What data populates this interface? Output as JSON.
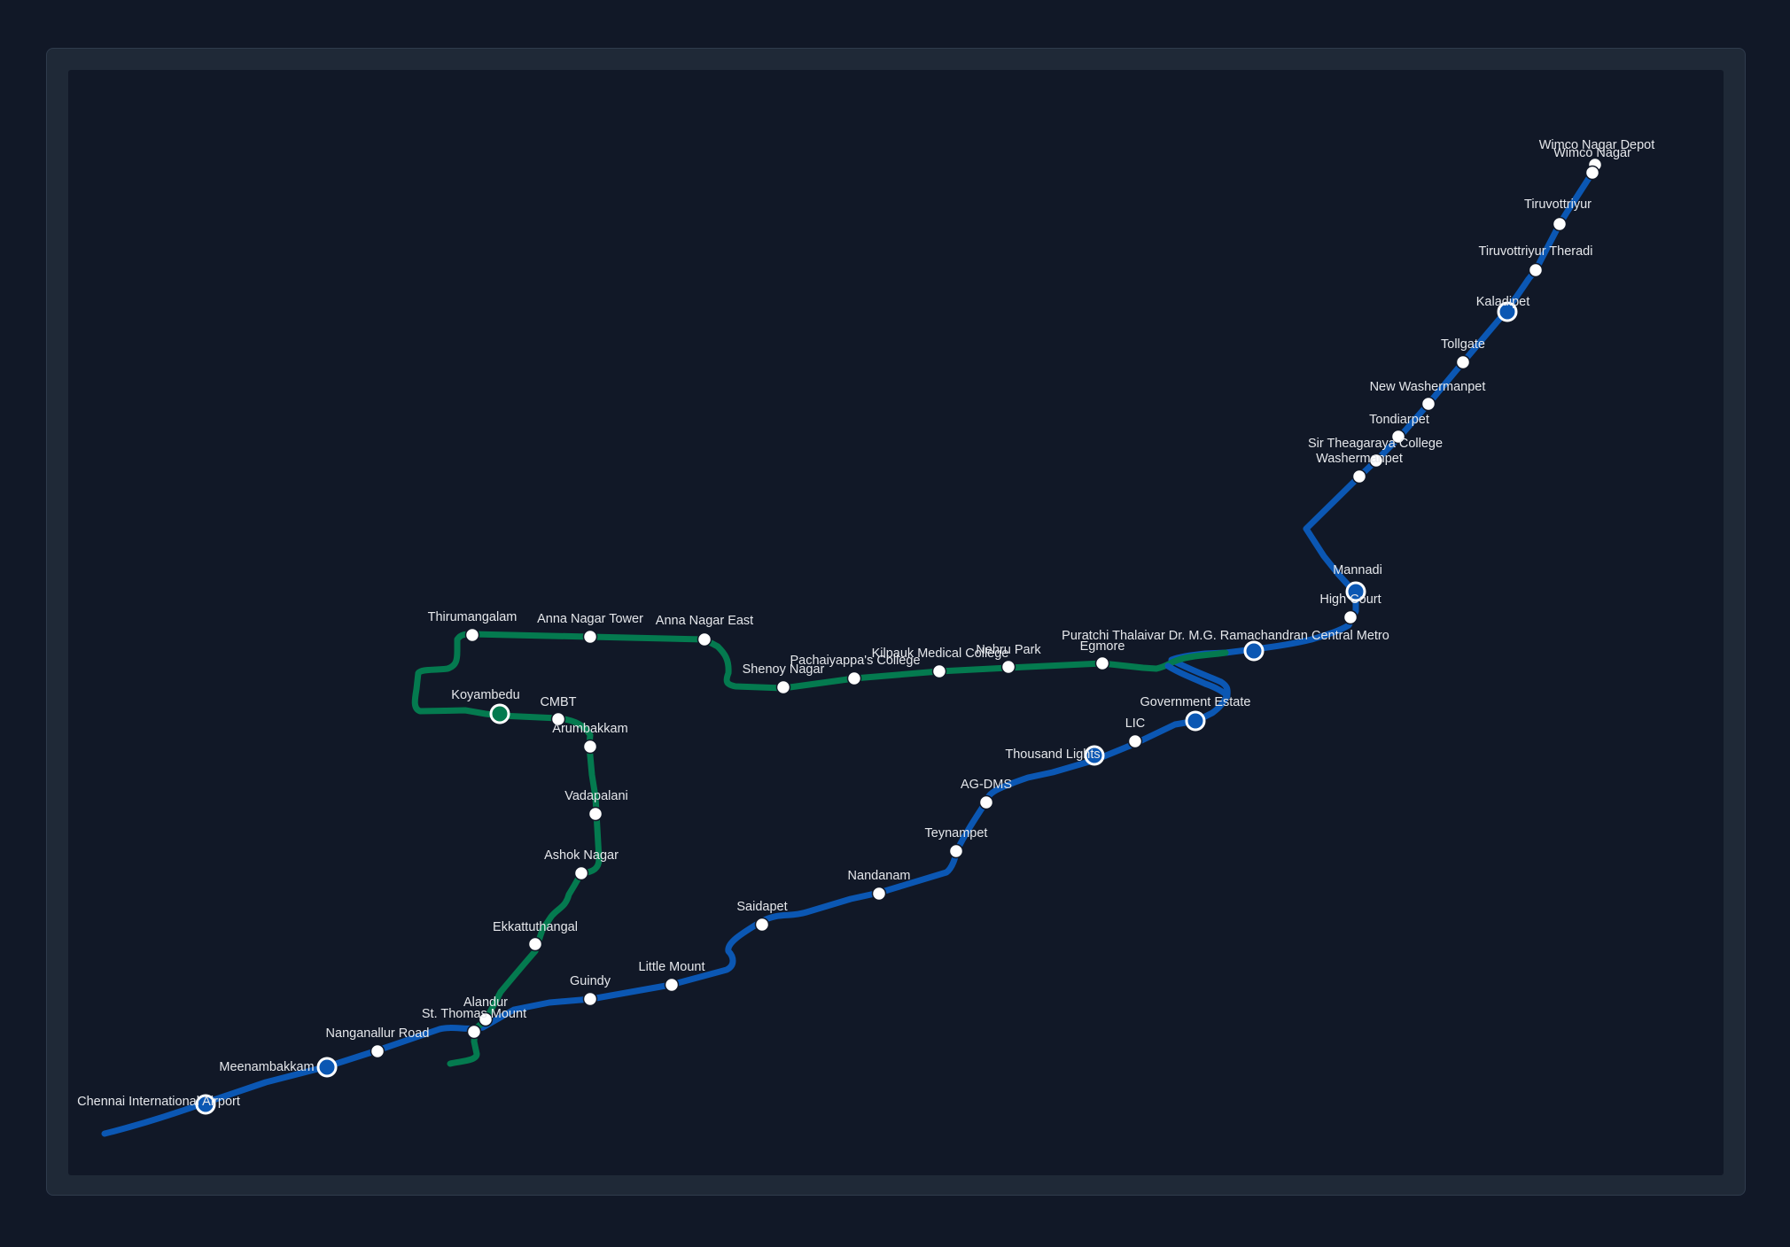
{
  "colors": {
    "background": "#111827",
    "blue_line": "#0b57b3",
    "green_line": "#047a4f",
    "station_fill": "#ffffff",
    "label": "#e5e7eb"
  },
  "lines": [
    {
      "id": "blue",
      "color": "#0b57b3"
    },
    {
      "id": "green",
      "color": "#047a4f"
    }
  ],
  "stations": [
    {
      "name": "Wimco Nagar Depot"
    },
    {
      "name": "Wimco Nagar"
    },
    {
      "name": "Tiruvottriyur"
    },
    {
      "name": "Tiruvottriyur Theradi"
    },
    {
      "name": "Kaladipet"
    },
    {
      "name": "Tollgate"
    },
    {
      "name": "New Washermanpet"
    },
    {
      "name": "Tondiarpet"
    },
    {
      "name": "Sir Theagaraya College"
    },
    {
      "name": "Washermanpet"
    },
    {
      "name": "Mannadi"
    },
    {
      "name": "High Court"
    },
    {
      "name": "Puratchi Thalaivar Dr. M.G. Ramachandran Central Metro"
    },
    {
      "name": "Egmore"
    },
    {
      "name": "Nehru Park"
    },
    {
      "name": "Kilpauk Medical College"
    },
    {
      "name": "Pachaiyappa's College"
    },
    {
      "name": "Shenoy Nagar"
    },
    {
      "name": "Anna Nagar East"
    },
    {
      "name": "Anna Nagar Tower"
    },
    {
      "name": "Thirumangalam"
    },
    {
      "name": "Koyambedu"
    },
    {
      "name": "CMBT"
    },
    {
      "name": "Arumbakkam"
    },
    {
      "name": "Vadapalani"
    },
    {
      "name": "Ashok Nagar"
    },
    {
      "name": "Ekkattuthangal"
    },
    {
      "name": "Alandur"
    },
    {
      "name": "St. Thomas Mount"
    },
    {
      "name": "Government Estate"
    },
    {
      "name": "LIC"
    },
    {
      "name": "Thousand Lights"
    },
    {
      "name": "AG-DMS"
    },
    {
      "name": "Teynampet"
    },
    {
      "name": "Nandanam"
    },
    {
      "name": "Saidapet"
    },
    {
      "name": "Little Mount"
    },
    {
      "name": "Guindy"
    },
    {
      "name": "Nanganallur Road"
    },
    {
      "name": "Meenambakkam"
    },
    {
      "name": "Chennai International Airport"
    }
  ]
}
